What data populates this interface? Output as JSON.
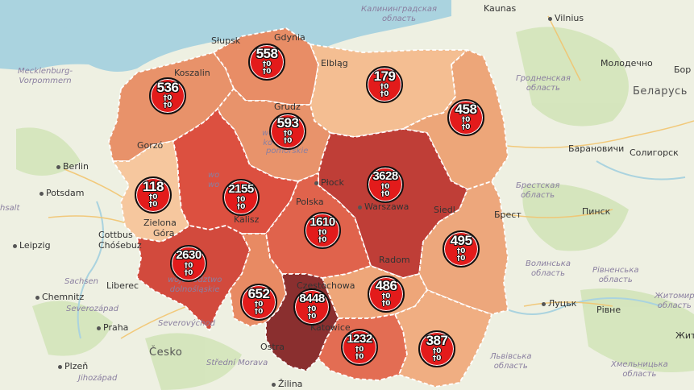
{
  "map": {
    "voivodeships": [
      {
        "id": "zachodniopomorskie",
        "count": "536",
        "color": "#e8926a"
      },
      {
        "id": "pomorskie",
        "count": "558",
        "color": "#e88d66"
      },
      {
        "id": "warminsko-mazurskie",
        "count": "179",
        "color": "#f4be92"
      },
      {
        "id": "podlaskie",
        "count": "458",
        "color": "#eda679"
      },
      {
        "id": "kujawsko-pomorskie",
        "count": "593",
        "color": "#e8936b"
      },
      {
        "id": "lubuskie",
        "count": "118",
        "color": "#f6c79e"
      },
      {
        "id": "wielkopolskie",
        "count": "2155",
        "color": "#dc5040"
      },
      {
        "id": "mazowieckie",
        "count": "3628",
        "color": "#bf3e37"
      },
      {
        "id": "lodzkie",
        "count": "1610",
        "color": "#e0634c"
      },
      {
        "id": "lubelskie",
        "count": "495",
        "color": "#eda77c"
      },
      {
        "id": "dolnoslaskie",
        "count": "2630",
        "color": "#d24a3d"
      },
      {
        "id": "opolskie",
        "count": "652",
        "color": "#e88a63"
      },
      {
        "id": "slaskie",
        "count": "8448",
        "color": "#8a2f2f"
      },
      {
        "id": "swietokrzyskie",
        "count": "486",
        "color": "#eea679"
      },
      {
        "id": "malopolskie",
        "count": "1232",
        "color": "#e36d53"
      },
      {
        "id": "podkarpackie",
        "count": "387",
        "color": "#f0ae82"
      }
    ],
    "marker_sub": "†0",
    "marker_sub2": "†0",
    "countries": {
      "belarus": "Беларусь",
      "germany": "",
      "czech": "Česko"
    },
    "cities": {
      "vilnius": "Vilnius",
      "kaunas": "Kaunas",
      "molodechno": "Молодечно",
      "baranovichi": "Барановичи",
      "soligorsk": "Солигорск",
      "pinsk": "Пинск",
      "berlin": "Berlin",
      "potsdam": "Potsdam",
      "leipzig": "Leipzig",
      "cottbus": "Cottbus",
      "chosebuz": "Chóśebuz",
      "chemnitz": "Chemnitz",
      "praha": "Praha",
      "plzen": "Plzeň",
      "lutsk": "Луцьк",
      "rivne": "Рівне",
      "zilina": "Žilina",
      "ostrava": "Ostra",
      "zhyt": "Жит",
      "bor": "Бор",
      "koszalin": "Koszalin",
      "slupsk": "Słupsk",
      "gdynia": "Gdynia",
      "elblag": "Elbląg",
      "grudziadz": "Grudz",
      "gorzow": "Gorzó",
      "plock": "Płock",
      "warszawa": "Warszawa",
      "siedlce": "Siedl",
      "brest": "Брест",
      "kalisz": "Kalisz",
      "radom": "Radom",
      "czestochowa": "Częstochowa",
      "katowice": "Katowice",
      "zielona": "Zielona",
      "gora": "Góra",
      "legnica": "Liberec",
      "polska": "Polska"
    },
    "regions": {
      "kaliningrad": "Калининградская\nобласть",
      "grodno": "Гродненская\nобласть",
      "brest": "Брестская\nобласть",
      "mecklenburg": "Mecklenburg-\nVorpommern",
      "sachsen": "Sachsen",
      "severozapad": "Severozápad",
      "jihozapad": "Jihozápad",
      "severovychod": "Severovýchod",
      "stredni": "Střední Morava",
      "volyn": "Волинська\nобласть",
      "rivne": "Рівненська\nобласть",
      "lviv": "Львівська\nобласть",
      "khmel": "Хмельницька\nобласть",
      "zhyt": "Житомир\nобласть",
      "anhalt": "hsalt",
      "wojdoln": "województwo\ndolnośląskie",
      "wojpom": "pomorskie",
      "wojwiel": "wo\nwo",
      "wojkuj": "wo\nko"
    }
  }
}
